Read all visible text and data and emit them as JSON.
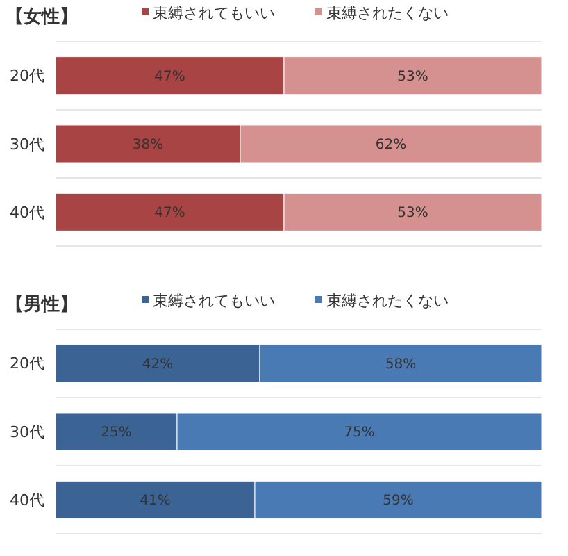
{
  "chart_data": [
    {
      "type": "bar",
      "title": "【女性】",
      "orientation": "horizontal",
      "stacked": true,
      "categories": [
        "20代",
        "30代",
        "40代"
      ],
      "xlim": [
        0,
        100
      ],
      "tick_labels": "y",
      "legend": "top",
      "series": [
        {
          "name": "束縛されてもいい",
          "color": "#a84443",
          "values": [
            47,
            38,
            47
          ],
          "value_labels": [
            "47%",
            "38%",
            "47%"
          ]
        },
        {
          "name": "束縛されたくない",
          "color": "#d49190",
          "values": [
            53,
            62,
            53
          ],
          "value_labels": [
            "53%",
            "62%",
            "53%"
          ]
        }
      ]
    },
    {
      "type": "bar",
      "title": "【男性】",
      "orientation": "horizontal",
      "stacked": true,
      "categories": [
        "20代",
        "30代",
        "40代"
      ],
      "xlim": [
        0,
        100
      ],
      "tick_labels": "y",
      "legend": "top",
      "series": [
        {
          "name": "束縛されてもいい",
          "color": "#3b6494",
          "values": [
            42,
            25,
            41
          ],
          "value_labels": [
            "42%",
            "25%",
            "41%"
          ]
        },
        {
          "name": "束縛されたくない",
          "color": "#4a7ab4",
          "values": [
            58,
            75,
            59
          ],
          "value_labels": [
            "58%",
            "75%",
            "59%"
          ]
        }
      ]
    }
  ]
}
